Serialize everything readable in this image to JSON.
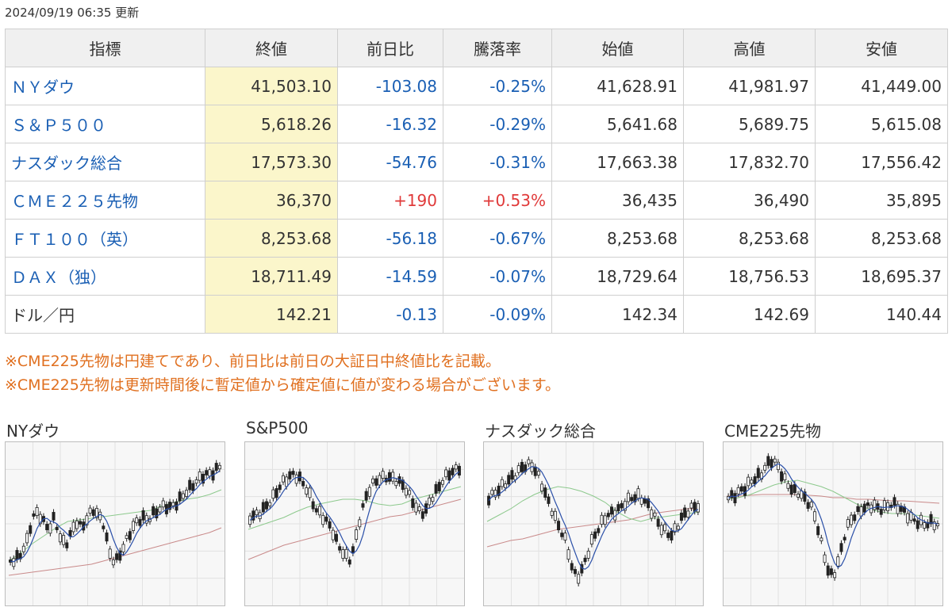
{
  "updated": "2024/09/19 06:35 更新",
  "headers": [
    "指標",
    "終値",
    "前日比",
    "騰落率",
    "始値",
    "高値",
    "安値"
  ],
  "rows": [
    {
      "name": "ＮＹダウ",
      "close": "41,503.10",
      "change": "-103.08",
      "pct": "-0.25%",
      "open": "41,628.91",
      "high": "41,981.97",
      "low": "41,449.00",
      "dir": "down",
      "link": true
    },
    {
      "name": "Ｓ＆Ｐ５００",
      "close": "5,618.26",
      "change": "-16.32",
      "pct": "-0.29%",
      "open": "5,641.68",
      "high": "5,689.75",
      "low": "5,615.08",
      "dir": "down",
      "link": true
    },
    {
      "name": "ナスダック総合",
      "close": "17,573.30",
      "change": "-54.76",
      "pct": "-0.31%",
      "open": "17,663.38",
      "high": "17,832.70",
      "low": "17,556.42",
      "dir": "down",
      "link": true
    },
    {
      "name": "ＣＭＥ２２５先物",
      "close": "36,370",
      "change": "+190",
      "pct": "+0.53%",
      "open": "36,435",
      "high": "36,490",
      "low": "35,895",
      "dir": "up",
      "link": true
    },
    {
      "name": "ＦＴ１００（英）",
      "close": "8,253.68",
      "change": "-56.18",
      "pct": "-0.67%",
      "open": "8,253.68",
      "high": "8,253.68",
      "low": "8,253.68",
      "dir": "down",
      "link": true
    },
    {
      "name": "ＤＡＸ（独）",
      "close": "18,711.49",
      "change": "-14.59",
      "pct": "-0.07%",
      "open": "18,729.64",
      "high": "18,756.53",
      "low": "18,695.37",
      "dir": "down",
      "link": true
    },
    {
      "name": "ドル／円",
      "close": "142.21",
      "change": "-0.13",
      "pct": "-0.09%",
      "open": "142.34",
      "high": "142.69",
      "low": "140.44",
      "dir": "down",
      "link": false
    }
  ],
  "notes": [
    "※CME225先物は円建てであり、前日比は前日の大証日中終値比を記載。",
    "※CME225先物は更新時間後に暫定値から確定値に値が変わる場合がございます。"
  ],
  "charts": [
    {
      "title": "NYダウ"
    },
    {
      "title": "S&P500"
    },
    {
      "title": "ナスダック総合"
    },
    {
      "title": "CME225先物"
    }
  ],
  "colors": {
    "up": "#e03a3a",
    "down": "#1a5fb4",
    "close_bg": "#fbf6cb",
    "note": "#e07020"
  }
}
